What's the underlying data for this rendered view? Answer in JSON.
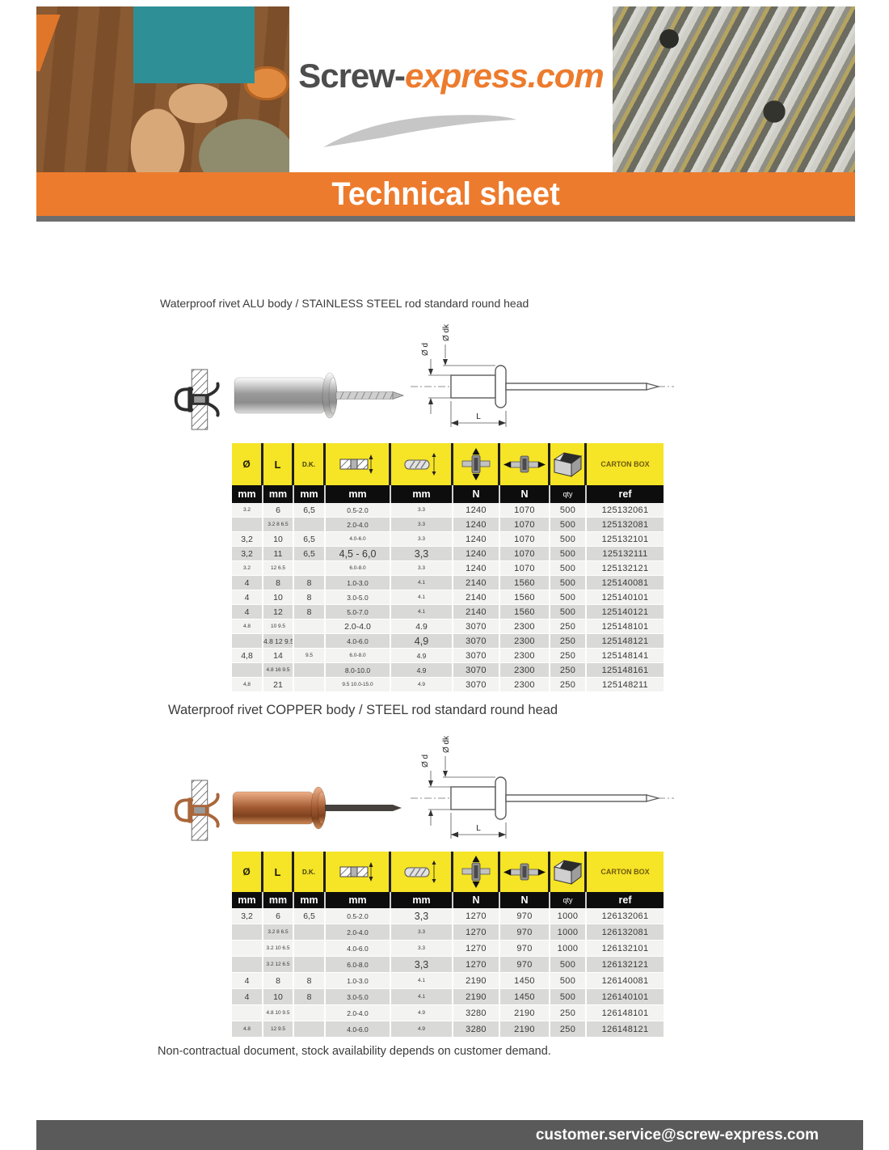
{
  "header": {
    "logo_part1": "Screw-",
    "logo_part2": "express.com",
    "banner_title": "Technical sheet"
  },
  "footer": {
    "note": "Non-contractual document, stock availability depends on customer demand.",
    "email": "customer.service@screw-express.com"
  },
  "colors": {
    "brand_orange": "#ED7B2D",
    "table_yellow": "#F6E426",
    "units_black": "#0D0D0D",
    "row_gray": "#D9D9D7",
    "banner_shadow_gray": "#6D6D6D",
    "email_bar_gray": "#5A5A5A",
    "accent_blue_text": "#4D7EA8",
    "accent_orange_text": "#B5793D"
  },
  "sections": [
    {
      "title": "Waterproof rivet ALU body / STAINLESS STEEL rod standard round head",
      "diagram": {
        "label_d": "Ø d",
        "label_dk": "Ø dk",
        "label_L": "L"
      },
      "table": {
        "head": {
          "dia": "Ø",
          "length": "L",
          "dk": "D.K.",
          "carton": "CARTON BOX",
          "icons": [
            "grip-range-icon",
            "drill-diameter-icon",
            "shear-strength-icon",
            "tensile-strength-icon",
            "carton-box-icon"
          ]
        },
        "units": [
          "mm",
          "mm",
          "mm",
          "mm",
          "mm",
          "N",
          "N",
          "qty",
          "ref"
        ],
        "rows": [
          [
            [
              "3.2",
              "xs"
            ],
            [
              "6",
              "md"
            ],
            [
              "6,5",
              "md"
            ],
            [
              "0.5-2.0",
              "sm or"
            ],
            [
              "3.3",
              "xs bl"
            ],
            "1240",
            "1070",
            "500",
            "125132061"
          ],
          [
            [
              "",
              ""
            ],
            [
              "3.2 8 6.5",
              "xs"
            ],
            [
              "",
              ""
            ],
            [
              "2.0-4.0",
              "sm"
            ],
            [
              "3.3",
              "xs bl"
            ],
            "1240",
            "1070",
            "500",
            "125132081"
          ],
          [
            [
              "3,2",
              "md"
            ],
            [
              "10",
              "md"
            ],
            [
              "6,5",
              "md"
            ],
            [
              "4.0-6.0",
              "xs bl"
            ],
            [
              "3.3",
              "xs"
            ],
            "1240",
            "1070",
            "500",
            "125132101"
          ],
          [
            [
              "3,2",
              "md"
            ],
            [
              "11",
              "md"
            ],
            [
              "6,5",
              "md"
            ],
            [
              "4,5 - 6,0",
              "lg"
            ],
            [
              "3,3",
              "lg"
            ],
            "1240",
            "1070",
            "500",
            "125132111"
          ],
          [
            [
              "3.2",
              "xs"
            ],
            [
              "12 6.5",
              "xs or"
            ],
            [
              "",
              ""
            ],
            [
              "6.0-8.0",
              "xs"
            ],
            [
              "3.3",
              "xs bl"
            ],
            "1240",
            "1070",
            "500",
            "125132121"
          ],
          [
            [
              "4",
              "md"
            ],
            [
              "8",
              "md"
            ],
            [
              "8",
              "md"
            ],
            [
              "1.0-3.0",
              "sm"
            ],
            [
              "4.1",
              "xs bl"
            ],
            "2140",
            "1560",
            "500",
            "125140081"
          ],
          [
            [
              "4",
              "md"
            ],
            [
              "10",
              "md"
            ],
            [
              "8",
              "md"
            ],
            [
              "3.0-5.0",
              "sm or"
            ],
            [
              "4.1",
              "xs"
            ],
            "2140",
            "1560",
            "500",
            "125140101"
          ],
          [
            [
              "4",
              "md"
            ],
            [
              "12",
              "md"
            ],
            [
              "8",
              "md"
            ],
            [
              "5.0-7.0",
              "sm"
            ],
            [
              "4.1",
              "xs"
            ],
            "2140",
            "1560",
            "500",
            "125140121"
          ],
          [
            [
              "4.8",
              "xs"
            ],
            [
              "10 9.5",
              "xs"
            ],
            [
              "",
              ""
            ],
            [
              "2.0-4.0",
              "md"
            ],
            [
              "4.9",
              "md bl"
            ],
            "3070",
            "2300",
            "250",
            "125148101"
          ],
          [
            [
              "",
              ""
            ],
            [
              "4.8 12 9.5",
              "sm"
            ],
            [
              "",
              ""
            ],
            [
              "4.0-6.0",
              "sm"
            ],
            [
              "4,9",
              "lg"
            ],
            "3070",
            "2300",
            "250",
            "125148121"
          ],
          [
            [
              "4,8",
              "md"
            ],
            [
              "14",
              "md"
            ],
            [
              "9.5",
              "xs"
            ],
            [
              "6.0-8.0",
              "xs"
            ],
            [
              "4.9",
              "sm bl"
            ],
            "3070",
            "2300",
            "250",
            "125148141"
          ],
          [
            [
              "",
              ""
            ],
            [
              "4.8 16 9.5",
              "xs"
            ],
            [
              "",
              ""
            ],
            [
              "8.0-10.0",
              "sm"
            ],
            [
              "4.9",
              "sm"
            ],
            "3070",
            "2300",
            "250",
            "125148161"
          ],
          [
            [
              "4,8",
              "xs"
            ],
            [
              "21",
              "md"
            ],
            [
              "",
              ""
            ],
            [
              "9.5 10.0-15.0",
              "xs bl"
            ],
            [
              "4.9",
              "xs"
            ],
            "3070",
            "2300",
            "250",
            "125148211"
          ]
        ]
      }
    },
    {
      "title": "Waterproof rivet COPPER body / STEEL rod standard round head",
      "diagram": {
        "label_d": "Ø d",
        "label_dk": "Ø dk",
        "label_L": "L"
      },
      "table": {
        "head": {
          "dia": "Ø",
          "length": "L",
          "dk": "D.K.",
          "carton": "CARTON BOX",
          "icons": [
            "grip-range-icon",
            "drill-diameter-icon",
            "shear-strength-icon",
            "tensile-strength-icon",
            "carton-box-icon"
          ]
        },
        "units": [
          "mm",
          "mm",
          "mm",
          "mm",
          "mm",
          "N",
          "N",
          "qty",
          "ref"
        ],
        "rows": [
          [
            [
              "3,2",
              "md"
            ],
            [
              "6",
              "md"
            ],
            [
              "6,5",
              "md"
            ],
            [
              "0.5-2.0",
              "sm bl"
            ],
            [
              "3,3",
              "lg"
            ],
            "1270",
            "970",
            "1000",
            "126132061"
          ],
          [
            [
              "",
              ""
            ],
            [
              "3.2 8 6.5",
              "xs"
            ],
            [
              "",
              ""
            ],
            [
              "2.0-4.0",
              "sm"
            ],
            [
              "3.3",
              "xs"
            ],
            "1270",
            "970",
            "1000",
            "126132081"
          ],
          [
            [
              "",
              ""
            ],
            [
              "3.2 10 6.5",
              "xs"
            ],
            [
              "",
              ""
            ],
            [
              "4.0-6.0",
              "sm"
            ],
            [
              "3.3",
              "xs"
            ],
            "1270",
            "970",
            "1000",
            "126132101"
          ],
          [
            [
              "",
              ""
            ],
            [
              "3.2 12 6.5",
              "xs"
            ],
            [
              "",
              ""
            ],
            [
              "6.0-8.0",
              "sm"
            ],
            [
              "3,3",
              "lg"
            ],
            "1270",
            "970",
            "500",
            "126132121"
          ],
          [
            [
              "4",
              "md"
            ],
            [
              "8",
              "md"
            ],
            [
              "8",
              "md"
            ],
            [
              "1.0-3.0",
              "sm"
            ],
            [
              "4.1",
              "xs bl"
            ],
            "2190",
            "1450",
            "500",
            "126140081"
          ],
          [
            [
              "4",
              "md"
            ],
            [
              "10",
              "md"
            ],
            [
              "8",
              "md"
            ],
            [
              "3.0-5.0",
              "sm bl"
            ],
            [
              "4.1",
              "xs bl"
            ],
            "2190",
            "1450",
            "500",
            "126140101"
          ],
          [
            [
              "",
              ""
            ],
            [
              "4.8 10 9.5",
              "xs"
            ],
            [
              "",
              ""
            ],
            [
              "2.0-4.0",
              "sm or"
            ],
            [
              "4.9",
              "xs bl"
            ],
            "3280",
            "2190",
            "250",
            "126148101"
          ],
          [
            [
              "4.8",
              "xs"
            ],
            [
              "12 9.5",
              "xs"
            ],
            [
              "",
              ""
            ],
            [
              "4.0-6.0",
              "sm"
            ],
            [
              "4.9",
              "xs"
            ],
            "3280",
            "2190",
            "250",
            "126148121"
          ]
        ]
      }
    }
  ]
}
